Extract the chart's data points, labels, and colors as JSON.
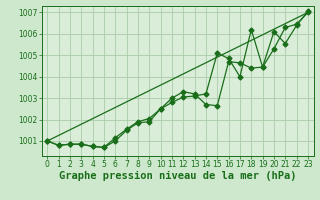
{
  "background_color": "#cde8cd",
  "plot_bg_color": "#d9edd9",
  "grid_color": "#aaccaa",
  "line_color": "#1a6e1a",
  "title": "Graphe pression niveau de la mer (hPa)",
  "ylim": [
    1000.3,
    1007.3
  ],
  "xlim": [
    -0.5,
    23.5
  ],
  "yticks": [
    1001,
    1002,
    1003,
    1004,
    1005,
    1006,
    1007
  ],
  "xticks": [
    0,
    1,
    2,
    3,
    4,
    5,
    6,
    7,
    8,
    9,
    10,
    11,
    12,
    13,
    14,
    15,
    16,
    17,
    18,
    19,
    20,
    21,
    22,
    23
  ],
  "series1_x": [
    0,
    23
  ],
  "series1_y": [
    1001.0,
    1007.0
  ],
  "series2_x": [
    0,
    1,
    2,
    3,
    4,
    5,
    6,
    7,
    8,
    9,
    10,
    11,
    12,
    13,
    14,
    15,
    16,
    17,
    18,
    19,
    20,
    21,
    22,
    23
  ],
  "series2_y": [
    1001.0,
    1000.8,
    1000.85,
    1000.85,
    1000.75,
    1000.7,
    1001.15,
    1001.55,
    1001.9,
    1002.05,
    1002.5,
    1003.0,
    1003.3,
    1003.2,
    1002.7,
    1002.65,
    1004.7,
    1004.65,
    1004.4,
    1004.45,
    1005.3,
    1006.3,
    1006.45,
    1007.0
  ],
  "series3_x": [
    0,
    1,
    2,
    3,
    4,
    5,
    6,
    7,
    8,
    9,
    10,
    11,
    12,
    13,
    14,
    15,
    16,
    17,
    18,
    19,
    20,
    21,
    22,
    23
  ],
  "series3_y": [
    1001.0,
    1000.8,
    1000.85,
    1000.85,
    1000.75,
    1000.7,
    1001.0,
    1001.5,
    1001.85,
    1001.9,
    1002.5,
    1002.8,
    1003.05,
    1003.1,
    1003.2,
    1005.1,
    1004.85,
    1004.0,
    1006.2,
    1004.45,
    1006.1,
    1005.55,
    1006.4,
    1007.05
  ],
  "title_fontsize": 7.5,
  "tick_fontsize": 5.5,
  "linewidth": 0.9,
  "markersize": 2.5
}
